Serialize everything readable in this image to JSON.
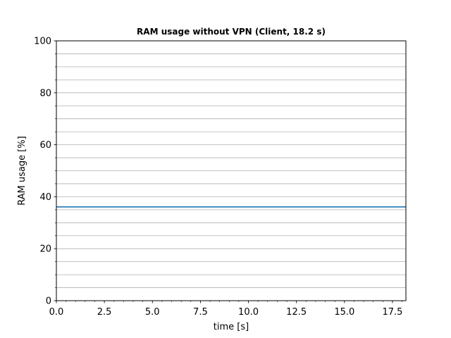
{
  "chart_data": {
    "type": "line",
    "title": "RAM usage without VPN (Client, 18.2 s)",
    "xlabel": "time [s]",
    "ylabel": "RAM usage [%]",
    "xlim": [
      0,
      18.2
    ],
    "ylim": [
      0,
      100
    ],
    "x_ticks": [
      0,
      2.5,
      5,
      7.5,
      10,
      12.5,
      15,
      17.5
    ],
    "x_tick_labels": [
      "0.0",
      "2.5",
      "5.0",
      "7.5",
      "10.0",
      "12.5",
      "15.0",
      "17.5"
    ],
    "y_ticks": [
      0,
      20,
      40,
      60,
      80,
      100
    ],
    "y_tick_labels": [
      "0",
      "20",
      "40",
      "60",
      "80",
      "100"
    ],
    "y_minor_step": 5,
    "x_minor_step": 0.5,
    "grid": "horizontal major and minor",
    "series": [
      {
        "color": "#1f77b4",
        "x": [
          0,
          2,
          4,
          6,
          8,
          10,
          12,
          14,
          16,
          18.2
        ],
        "y": [
          36.1,
          36.1,
          36.1,
          36.1,
          36.1,
          36.1,
          36.1,
          36.1,
          36.1,
          36.1
        ]
      }
    ]
  }
}
